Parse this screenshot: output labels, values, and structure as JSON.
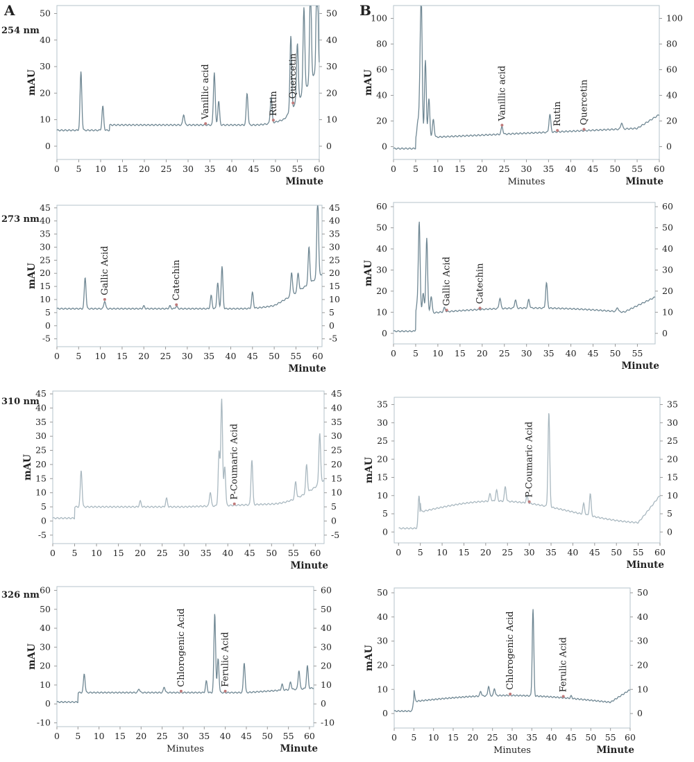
{
  "panels": {
    "A": "A",
    "B": "B"
  },
  "wavelengths": [
    "254 nm",
    "273 nm",
    "310 nm",
    "326 nm"
  ],
  "colors": {
    "trace": "#6f8793",
    "trace_light": "#a9b8c0",
    "frame": "#b4c3cb",
    "marker": "#c07a7a"
  },
  "chart_data": [
    {
      "type": "line",
      "id": "A1",
      "xlabel": "Minute",
      "xlabel2": "",
      "ylabel": "mAU",
      "xlim": [
        0,
        60
      ],
      "ylim": [
        -5,
        53
      ],
      "x_ticks": [
        0,
        5,
        10,
        15,
        20,
        25,
        30,
        35,
        40,
        45,
        50,
        55,
        60
      ],
      "y_ticks": [
        0,
        10,
        20,
        30,
        40,
        50
      ],
      "peaks": [
        [
          5.5,
          22
        ],
        [
          10.5,
          9
        ],
        [
          29,
          4
        ],
        [
          36,
          20
        ],
        [
          37,
          9
        ],
        [
          43.5,
          12
        ],
        [
          49,
          10
        ],
        [
          53.5,
          28
        ],
        [
          55,
          22
        ],
        [
          56.5,
          32
        ],
        [
          58,
          38
        ],
        [
          59.5,
          45
        ]
      ],
      "annotations": [
        {
          "label": "Vanillic acid",
          "x": 34
        },
        {
          "label": "Rutin",
          "x": 49.5
        },
        {
          "label": "Quercetin",
          "x": 54
        }
      ]
    },
    {
      "type": "line",
      "id": "B1",
      "xlabel": "Minute",
      "xlabel2": "Minutes",
      "ylabel": "mAU",
      "xlim": [
        0,
        60
      ],
      "ylim": [
        -10,
        110
      ],
      "x_ticks": [
        0,
        5,
        10,
        15,
        20,
        25,
        30,
        35,
        40,
        45,
        50,
        55,
        60
      ],
      "y_ticks": [
        0,
        20,
        40,
        60,
        80,
        100
      ],
      "peaks": [
        [
          5.5,
          12
        ],
        [
          6,
          40
        ],
        [
          6.3,
          95
        ],
        [
          7.2,
          60
        ],
        [
          8,
          30
        ],
        [
          9,
          14
        ],
        [
          24.5,
          6
        ],
        [
          35.3,
          14
        ],
        [
          51.5,
          5
        ]
      ],
      "annotations": [
        {
          "label": "Vanillic acid",
          "x": 24.5
        },
        {
          "label": "Rutin",
          "x": 37
        },
        {
          "label": "Quercetin",
          "x": 43
        }
      ]
    },
    {
      "type": "line",
      "id": "A2",
      "xlabel": "Minute",
      "xlabel2": "",
      "ylabel": "mAU",
      "xlim": [
        0,
        61
      ],
      "ylim": [
        -8,
        46
      ],
      "x_ticks": [
        0,
        5,
        10,
        15,
        20,
        25,
        30,
        35,
        40,
        45,
        50,
        55,
        60
      ],
      "y_ticks": [
        -5,
        0,
        5,
        10,
        15,
        20,
        25,
        30,
        35,
        40,
        45
      ],
      "peaks": [
        [
          6.5,
          12
        ],
        [
          11,
          3
        ],
        [
          20,
          1
        ],
        [
          26,
          1
        ],
        [
          27.5,
          1
        ],
        [
          35.5,
          5
        ],
        [
          37,
          10
        ],
        [
          38,
          16
        ],
        [
          45,
          6
        ],
        [
          54,
          9
        ],
        [
          55.5,
          7
        ],
        [
          58,
          14
        ],
        [
          60,
          32
        ]
      ],
      "annotations": [
        {
          "label": "Gallic Acid",
          "x": 11
        },
        {
          "label": "Catechin",
          "x": 27.5
        }
      ]
    },
    {
      "type": "line",
      "id": "B2",
      "xlabel": "Minute",
      "xlabel2": "",
      "ylabel": "mAU",
      "xlim": [
        0,
        59
      ],
      "ylim": [
        -5,
        62
      ],
      "x_ticks": [
        0,
        5,
        10,
        15,
        20,
        25,
        30,
        35,
        40,
        45,
        50,
        55
      ],
      "y_ticks": [
        0,
        10,
        20,
        30,
        40,
        50,
        60
      ],
      "peaks": [
        [
          5.3,
          4
        ],
        [
          5.8,
          44
        ],
        [
          6.7,
          10
        ],
        [
          7.5,
          36
        ],
        [
          8.5,
          8
        ],
        [
          11.5,
          2
        ],
        [
          24,
          5
        ],
        [
          27.5,
          4
        ],
        [
          30.5,
          4
        ],
        [
          34.5,
          12
        ],
        [
          50.5,
          2
        ]
      ],
      "annotations": [
        {
          "label": "Gallic Acid",
          "x": 12
        },
        {
          "label": "Catechin",
          "x": 19.5
        }
      ]
    },
    {
      "type": "line",
      "id": "A3",
      "xlabel": "Minute",
      "xlabel2": "",
      "ylabel": "mAU",
      "xlim": [
        0,
        62
      ],
      "ylim": [
        -8,
        46
      ],
      "x_ticks": [
        0,
        5,
        10,
        15,
        20,
        25,
        30,
        35,
        40,
        45,
        50,
        55,
        60
      ],
      "y_ticks": [
        -5,
        0,
        5,
        10,
        15,
        20,
        25,
        30,
        35,
        40,
        45
      ],
      "peaks": [
        [
          6.5,
          13
        ],
        [
          20,
          2
        ],
        [
          26,
          3
        ],
        [
          36,
          5
        ],
        [
          38,
          19
        ],
        [
          38.6,
          38
        ],
        [
          39.3,
          14
        ],
        [
          45.5,
          16
        ],
        [
          55.5,
          6
        ],
        [
          58,
          10
        ],
        [
          61,
          18
        ]
      ],
      "annotations": [
        {
          "label": "P-Coumaric Acid",
          "x": 41.5
        }
      ]
    },
    {
      "type": "line",
      "id": "B3",
      "xlabel": "Minute",
      "xlabel2": "",
      "ylabel": "mAU",
      "xlim": [
        -1,
        60
      ],
      "ylim": [
        -3,
        37
      ],
      "x_ticks": [
        0,
        5,
        10,
        15,
        20,
        25,
        30,
        35,
        40,
        45,
        50,
        55,
        60
      ],
      "y_ticks": [
        0,
        5,
        10,
        15,
        20,
        25,
        30,
        35
      ],
      "peaks": [
        [
          4.7,
          9
        ],
        [
          21,
          2
        ],
        [
          22.5,
          3
        ],
        [
          24.5,
          4
        ],
        [
          29.5,
          2
        ],
        [
          34.5,
          26
        ],
        [
          42.5,
          3
        ],
        [
          44,
          6
        ]
      ],
      "annotations": [
        {
          "label": "P-Coumaric Acid",
          "x": 30
        }
      ]
    },
    {
      "type": "line",
      "id": "A4",
      "xlabel": "Minute",
      "xlabel2": "Minutes",
      "ylabel": "mAU",
      "xlim": [
        0,
        61
      ],
      "ylim": [
        -12,
        62
      ],
      "x_ticks": [
        0,
        5,
        10,
        15,
        20,
        25,
        30,
        35,
        40,
        45,
        50,
        55,
        60
      ],
      "y_ticks": [
        -10,
        0,
        10,
        20,
        30,
        40,
        50,
        60
      ],
      "peaks": [
        [
          6.5,
          10
        ],
        [
          19.5,
          2
        ],
        [
          25.5,
          3
        ],
        [
          35.5,
          6
        ],
        [
          37.5,
          42
        ],
        [
          38.3,
          18
        ],
        [
          44.5,
          16
        ],
        [
          53.5,
          3
        ],
        [
          55.5,
          4
        ],
        [
          57.5,
          10
        ],
        [
          59.5,
          12
        ]
      ],
      "annotations": [
        {
          "label": "Chlorogenic Acid",
          "x": 29.5
        },
        {
          "label": "Ferulic Acid",
          "x": 40
        }
      ]
    },
    {
      "type": "line",
      "id": "B4",
      "xlabel": "Minute",
      "xlabel2": "Minutes",
      "ylabel": "mAU",
      "xlim": [
        0,
        60
      ],
      "ylim": [
        -6,
        52
      ],
      "x_ticks": [
        0,
        5,
        10,
        15,
        20,
        25,
        30,
        35,
        40,
        45,
        50,
        55,
        60
      ],
      "y_ticks": [
        0,
        10,
        20,
        30,
        40,
        50
      ],
      "peaks": [
        [
          5,
          5
        ],
        [
          22,
          2
        ],
        [
          24,
          4
        ],
        [
          25.5,
          3
        ],
        [
          35.3,
          36
        ],
        [
          45,
          1
        ]
      ],
      "annotations": [
        {
          "label": "Chlorogenic Acid",
          "x": 29.5
        },
        {
          "label": "Ferulic Acid",
          "x": 43
        }
      ]
    }
  ]
}
